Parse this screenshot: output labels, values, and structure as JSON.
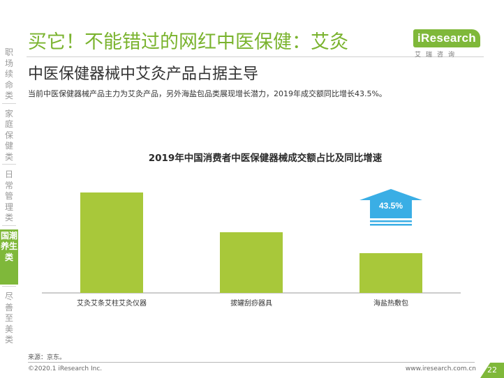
{
  "nav": {
    "items": [
      {
        "label": "职场续命类",
        "active": false
      },
      {
        "label": "家庭保健类",
        "active": false
      },
      {
        "label": "日常管理类",
        "active": false
      },
      {
        "label": "国潮养生类",
        "active": true
      },
      {
        "label": "尽善至美类",
        "active": false
      }
    ]
  },
  "header": {
    "title": "买它！不能错过的网红中医保健：艾灸",
    "subtitle": "中医保健器械中艾灸产品占据主导",
    "summary": "当前中医保健器械产品主力为艾灸产品，另外海盐包品类展现增长潜力，2019年成交额同比增长43.5%。"
  },
  "logo": {
    "text": "iResearch",
    "sub": "艾瑞咨询"
  },
  "chart_data": {
    "type": "bar",
    "title": "2019年中国消费者中医保健器械成交额占比及同比增速",
    "categories": [
      "艾灸艾条艾柱艾灸仪器",
      "拔罐刮痧器具",
      "海盐热敷包"
    ],
    "values": [
      0.48,
      0.29,
      0.19
    ],
    "ylim": [
      0,
      0.6
    ],
    "bar_color": "#a8c83a",
    "annotations": [
      {
        "category": "海盐热敷包",
        "label": "43.5%",
        "shape": "up-arrow",
        "color": "#3aaee5"
      }
    ],
    "xlabel": "",
    "ylabel": ""
  },
  "footer": {
    "source": "来源：京东。",
    "copyright": "©2020.1 iResearch Inc.",
    "website": "www.iresearch.com.cn",
    "page": "22"
  }
}
